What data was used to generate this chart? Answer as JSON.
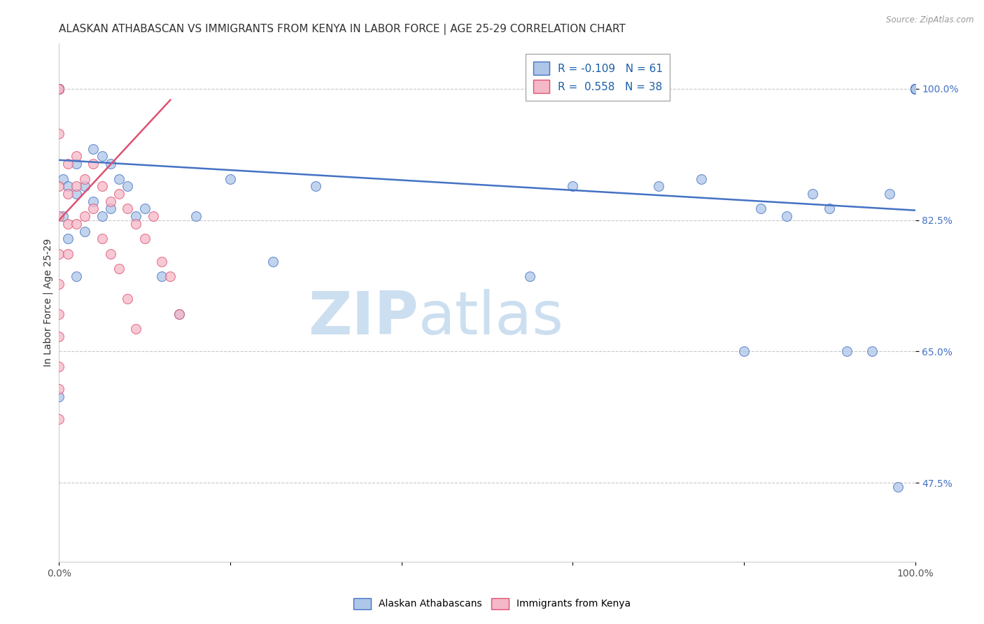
{
  "title": "ALASKAN ATHABASCAN VS IMMIGRANTS FROM KENYA IN LABOR FORCE | AGE 25-29 CORRELATION CHART",
  "source": "Source: ZipAtlas.com",
  "ylabel": "In Labor Force | Age 25-29",
  "xlim": [
    0.0,
    1.0
  ],
  "ylim": [
    0.37,
    1.06
  ],
  "blue_R": "-0.109",
  "blue_N": "61",
  "pink_R": "0.558",
  "pink_N": "38",
  "legend_label_blue": "Alaskan Athabascans",
  "legend_label_pink": "Immigrants from Kenya",
  "yticks": [
    0.475,
    0.65,
    0.825,
    1.0
  ],
  "ytick_labels": [
    "47.5%",
    "65.0%",
    "82.5%",
    "100.0%"
  ],
  "xticks": [
    0.0,
    0.2,
    0.4,
    0.6,
    0.8,
    1.0
  ],
  "xtick_labels": [
    "0.0%",
    "",
    "",
    "",
    "",
    "100.0%"
  ],
  "blue_color": "#aec6e8",
  "pink_color": "#f5b8c8",
  "blue_line_color": "#4472c4",
  "pink_line_color": "#e05070",
  "blue_x": [
    0.0,
    0.0,
    0.0,
    0.0,
    0.0,
    0.0,
    0.0,
    0.0,
    0.005,
    0.005,
    0.01,
    0.01,
    0.02,
    0.02,
    0.02,
    0.03,
    0.03,
    0.04,
    0.04,
    0.05,
    0.05,
    0.06,
    0.06,
    0.07,
    0.08,
    0.09,
    0.1,
    0.12,
    0.14,
    0.16,
    0.2,
    0.25,
    0.3,
    0.55,
    0.6,
    0.7,
    0.75,
    0.8,
    0.82,
    0.85,
    0.88,
    0.9,
    0.92,
    0.95,
    0.97,
    0.98,
    1.0,
    1.0,
    1.0,
    1.0,
    1.0,
    1.0,
    1.0,
    1.0,
    1.0,
    1.0,
    1.0,
    1.0,
    1.0,
    1.0,
    1.0
  ],
  "blue_y": [
    1.0,
    1.0,
    1.0,
    1.0,
    1.0,
    1.0,
    1.0,
    0.59,
    0.88,
    0.83,
    0.87,
    0.8,
    0.9,
    0.86,
    0.75,
    0.87,
    0.81,
    0.92,
    0.85,
    0.91,
    0.83,
    0.9,
    0.84,
    0.88,
    0.87,
    0.83,
    0.84,
    0.75,
    0.7,
    0.83,
    0.88,
    0.77,
    0.87,
    0.75,
    0.87,
    0.87,
    0.88,
    0.65,
    0.84,
    0.83,
    0.86,
    0.84,
    0.65,
    0.65,
    0.86,
    0.47,
    1.0,
    1.0,
    1.0,
    1.0,
    1.0,
    1.0,
    1.0,
    1.0,
    1.0,
    1.0,
    1.0,
    1.0,
    1.0,
    1.0,
    1.0
  ],
  "pink_x": [
    0.0,
    0.0,
    0.0,
    0.0,
    0.0,
    0.0,
    0.0,
    0.0,
    0.0,
    0.0,
    0.0,
    0.0,
    0.01,
    0.01,
    0.01,
    0.01,
    0.02,
    0.02,
    0.02,
    0.03,
    0.03,
    0.04,
    0.04,
    0.05,
    0.05,
    0.06,
    0.06,
    0.07,
    0.07,
    0.08,
    0.08,
    0.09,
    0.09,
    0.1,
    0.11,
    0.12,
    0.13,
    0.14
  ],
  "pink_y": [
    1.0,
    1.0,
    0.94,
    0.87,
    0.83,
    0.78,
    0.74,
    0.7,
    0.67,
    0.63,
    0.6,
    0.56,
    0.9,
    0.86,
    0.82,
    0.78,
    0.91,
    0.87,
    0.82,
    0.88,
    0.83,
    0.9,
    0.84,
    0.87,
    0.8,
    0.85,
    0.78,
    0.86,
    0.76,
    0.84,
    0.72,
    0.82,
    0.68,
    0.8,
    0.83,
    0.77,
    0.75,
    0.7
  ],
  "blue_trend_y_start": 0.905,
  "blue_trend_y_end": 0.838,
  "pink_trend_y_start": 0.825,
  "pink_trend_x_end": 0.13,
  "pink_trend_y_end": 0.985,
  "background_color": "#ffffff",
  "grid_color": "#c8c8c8",
  "title_fontsize": 11,
  "axis_label_fontsize": 10,
  "tick_fontsize": 10,
  "marker_size": 100
}
